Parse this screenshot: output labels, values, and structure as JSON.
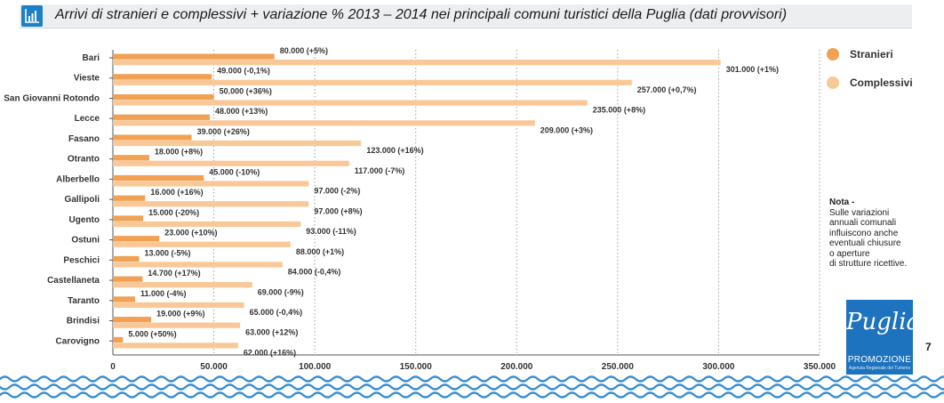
{
  "title": "Arrivi di stranieri e complessivi + variazione % 2013 – 2014 nei principali comuni turistici della Puglia (dati provvisori)",
  "legend": {
    "stranieri": "Stranieri",
    "complessivi": "Complessivi"
  },
  "note": {
    "title": "Nota -",
    "lines": [
      "Sulle variazioni",
      "annuali comunali",
      "influiscono anche",
      "eventuali chiusure",
      "o aperture",
      "di strutture ricettive."
    ]
  },
  "logo": {
    "script": "Puglia",
    "promo": "PROMOZIONE",
    "sub": "Agenzia Regionale del Turismo"
  },
  "page_number": "7",
  "colors": {
    "stranieri": "#f0a153",
    "complessivi": "#f9c898",
    "gridline": "#9aa0a6",
    "title_bar": "#eceef0",
    "brand_blue": "#1e73be",
    "wave": "#3a8fd1"
  },
  "chart_data": {
    "type": "bar",
    "orientation": "horizontal",
    "title": "Arrivi di stranieri e complessivi + variazione % 2013 – 2014 nei principali comuni turistici della Puglia (dati provvisori)",
    "categories": [
      "Bari",
      "Vieste",
      "San Giovanni Rotondo",
      "Lecce",
      "Fasano",
      "Otranto",
      "Alberbello",
      "Gallipoli",
      "Ugento",
      "Ostuni",
      "Peschici",
      "Castellaneta",
      "Taranto",
      "Brindisi",
      "Carovigno"
    ],
    "series": [
      {
        "name": "Stranieri",
        "values": [
          80000,
          49000,
          50000,
          48000,
          39000,
          18000,
          45000,
          16000,
          15000,
          23000,
          13000,
          14700,
          11000,
          19000,
          5000
        ],
        "labels": [
          "80.000 (+5%)",
          "49.000 (-0,1%)",
          "50.000 (+36%)",
          "48.000 (+13%)",
          "39.000 (+26%)",
          "18.000 (+8%)",
          "45.000 (-10%)",
          "16.000 (+16%)",
          "15.000 (-20%)",
          "23.000 (+10%)",
          "13.000 (-5%)",
          "14.700 (+17%)",
          "11.000 (-4%)",
          "19.000 (+9%)",
          "5.000 (+50%)"
        ]
      },
      {
        "name": "Complessivi",
        "values": [
          301000,
          257000,
          235000,
          209000,
          123000,
          117000,
          97000,
          97000,
          93000,
          88000,
          84000,
          69000,
          65000,
          63000,
          62000
        ],
        "labels": [
          "301.000 (+1%)",
          "257.000 (+0,7%)",
          "235.000 (+8%)",
          "209.000 (+3%)",
          "123.000 (+16%)",
          "117.000 (-7%)",
          "97.000 (-2%)",
          "97.000 (+8%)",
          "93.000 (-11%)",
          "88.000 (+1%)",
          "84.000 (-0,4%)",
          "69.000 (-9%)",
          "65.000 (-0,4%)",
          "63.000 (+12%)",
          "62.000 (+16%)"
        ]
      }
    ],
    "xlim": [
      0,
      350000
    ],
    "xticks": [
      0,
      50000,
      100000,
      150000,
      200000,
      250000,
      300000,
      350000
    ],
    "xtick_labels": [
      "0",
      "50.000",
      "100.000",
      "150.000",
      "200.000",
      "250.000",
      "300.000",
      "350.000"
    ],
    "grid": "vertical dotted",
    "legend_position": "right"
  }
}
